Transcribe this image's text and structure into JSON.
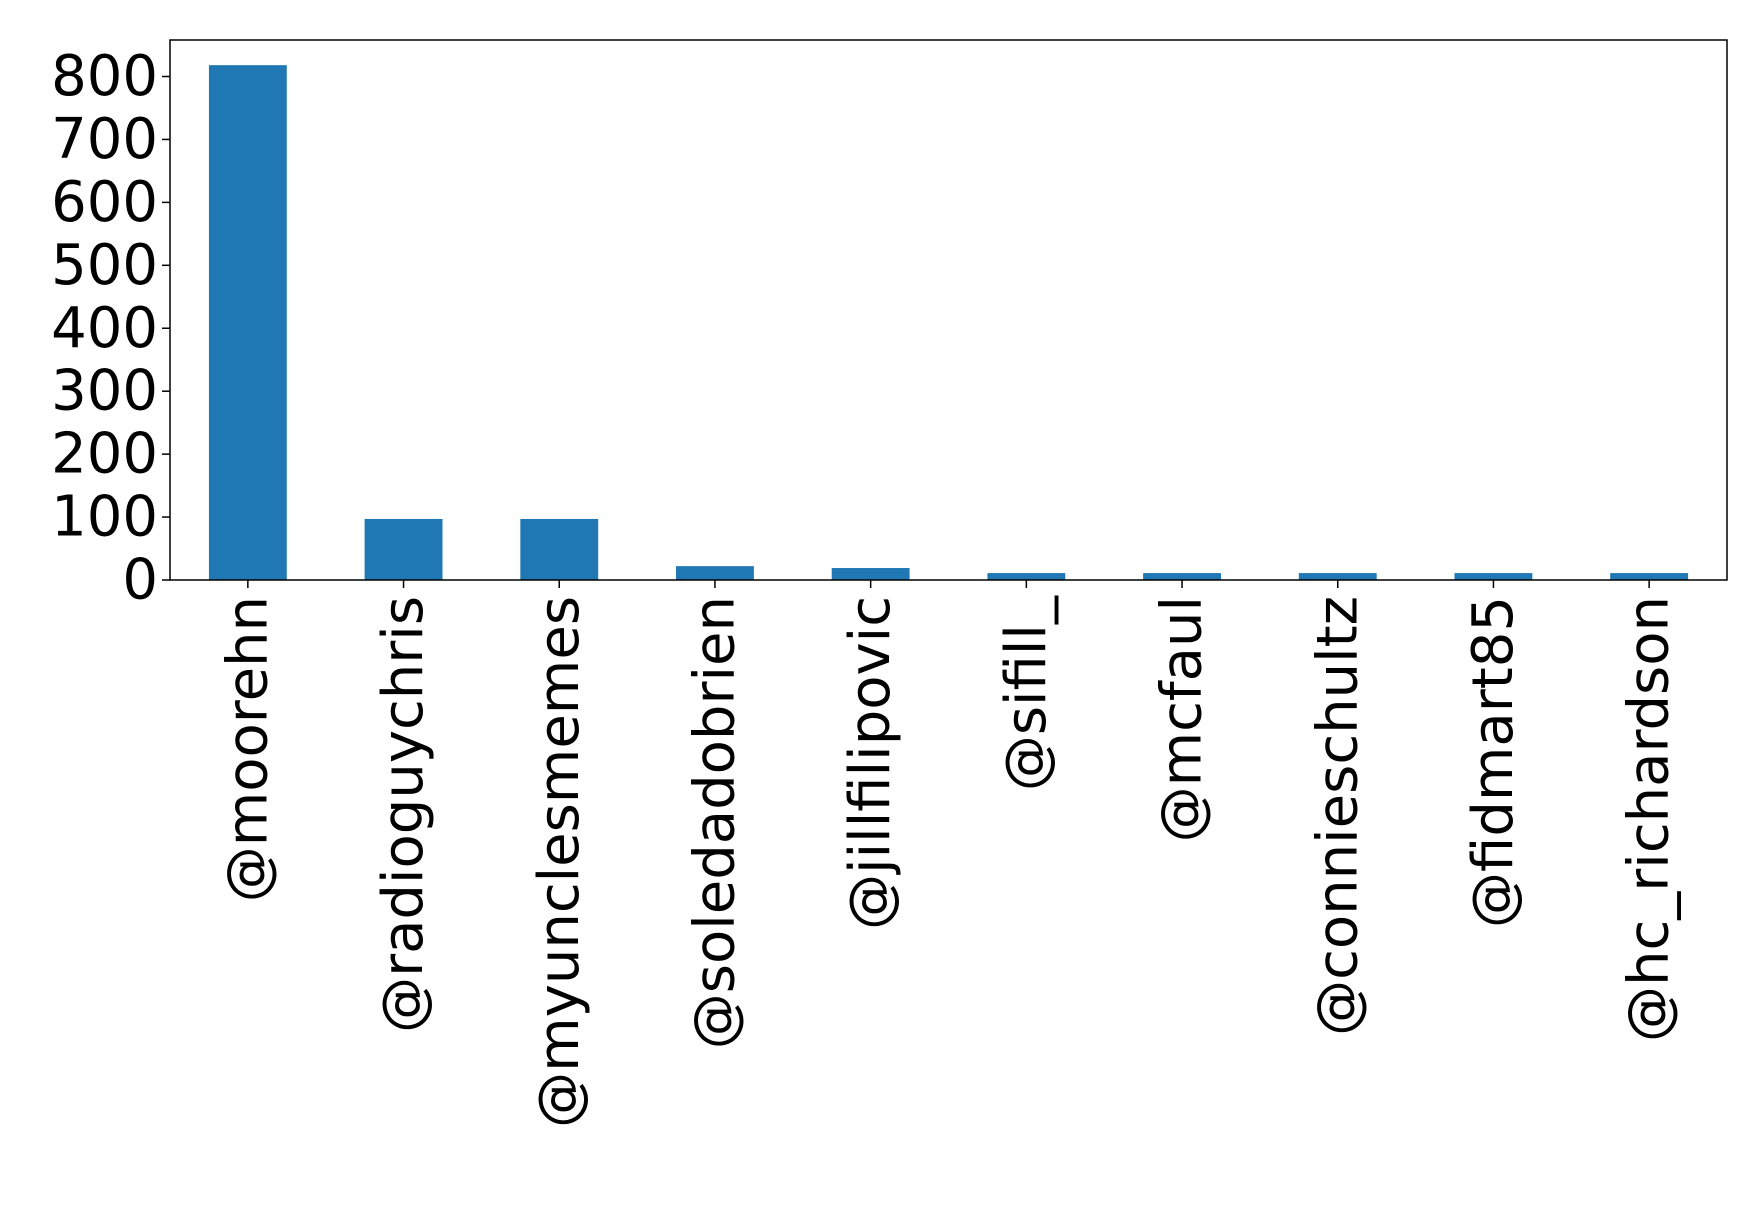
{
  "chart_data": {
    "type": "bar",
    "title": "",
    "xlabel": "",
    "ylabel": "",
    "categories": [
      "@moorehn",
      "@radioguychris",
      "@myunclesmemes",
      "@soledadobrien",
      "@jillfilipovic",
      "@sifill_",
      "@mcfaul",
      "@connieschultz",
      "@fidmart85",
      "@hc_richardson"
    ],
    "values": [
      818,
      97,
      97,
      22,
      19,
      11,
      11,
      11,
      11,
      11
    ],
    "ylim": [
      0,
      858
    ],
    "yticks": [
      0,
      100,
      200,
      300,
      400,
      500,
      600,
      700,
      800
    ],
    "bar_color": "#1f77b4",
    "grid": false,
    "legend": "none"
  }
}
